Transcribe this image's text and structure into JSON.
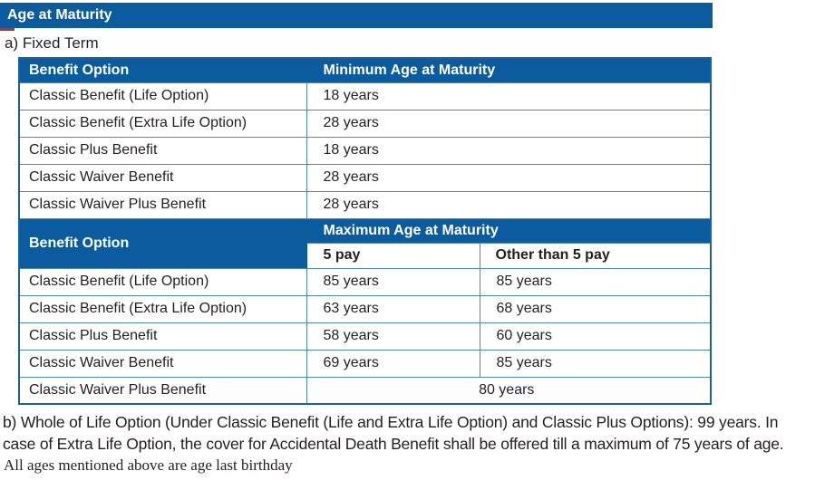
{
  "page": {
    "title": "Age at Maturity",
    "section_a_label": "a) Fixed Term",
    "note_b": "b) Whole of Life Option (Under Classic Benefit (Life and Extra Life Option) and Classic Plus Options): 99 years. In case of Extra Life Option, the cover for Accidental Death Benefit shall be offered till a maximum of 75 years of age.",
    "footnote": "All ages mentioned above are age last birthday"
  },
  "colors": {
    "header_blue": "#0b5c9e",
    "border_blue": "#4c88ba",
    "accent_red": "#c32a2e",
    "text_dark": "#231f20"
  },
  "min_table": {
    "header_benefit": "Benefit Option",
    "header_age": "Minimum Age at Maturity",
    "rows": [
      {
        "benefit": "Classic Benefit (Life Option)",
        "age": "18 years"
      },
      {
        "benefit": "Classic Benefit (Extra Life Option)",
        "age": "28 years"
      },
      {
        "benefit": "Classic Plus Benefit",
        "age": "18 years"
      },
      {
        "benefit": "Classic Waiver Benefit",
        "age": "28 years"
      },
      {
        "benefit": "Classic Waiver Plus Benefit",
        "age": "28 years"
      }
    ]
  },
  "max_table": {
    "header_benefit": "Benefit Option",
    "header_age": "Maximum Age at Maturity",
    "subheader_5pay": "5 pay",
    "subheader_other": "Other than 5 pay",
    "rows": [
      {
        "benefit": "Classic Benefit (Life Option)",
        "pay5": "85 years",
        "other": "85 years"
      },
      {
        "benefit": "Classic Benefit (Extra Life Option)",
        "pay5": "63 years",
        "other": "68 years"
      },
      {
        "benefit": "Classic Plus Benefit",
        "pay5": "58 years",
        "other": "60 years"
      },
      {
        "benefit": "Classic Waiver Benefit",
        "pay5": "69 years",
        "other": "85 years"
      }
    ],
    "merged_row": {
      "benefit": "Classic Waiver Plus Benefit",
      "value": "80 years"
    }
  }
}
